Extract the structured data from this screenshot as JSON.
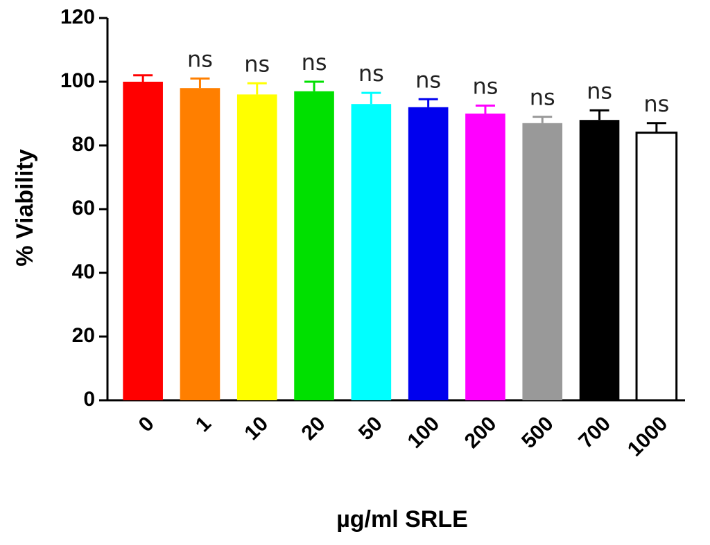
{
  "chart_data": {
    "type": "bar",
    "y_label": "% Viability",
    "x_label": "µg/ml SRLE",
    "categories": [
      "0",
      "1",
      "10",
      "20",
      "50",
      "100",
      "200",
      "500",
      "700",
      "1000"
    ],
    "values": [
      100,
      98,
      96,
      97,
      93,
      92,
      90,
      87,
      88,
      84
    ],
    "errors": [
      2,
      3,
      3.5,
      3,
      3.5,
      2.5,
      2.5,
      2,
      3,
      3
    ],
    "annotations": [
      null,
      "ns",
      "ns",
      "ns",
      "ns",
      "ns",
      "ns",
      "ns",
      "ns",
      "ns"
    ],
    "colors": [
      "#ff0000",
      "#ff7f00",
      "#ffff00",
      "#00e000",
      "#00ffff",
      "#0000ee",
      "#ff00ff",
      "#999999",
      "#000000",
      "#ffffff"
    ],
    "ylim": [
      0,
      120
    ],
    "yticks": [
      0,
      20,
      40,
      60,
      80,
      100,
      120
    ]
  }
}
